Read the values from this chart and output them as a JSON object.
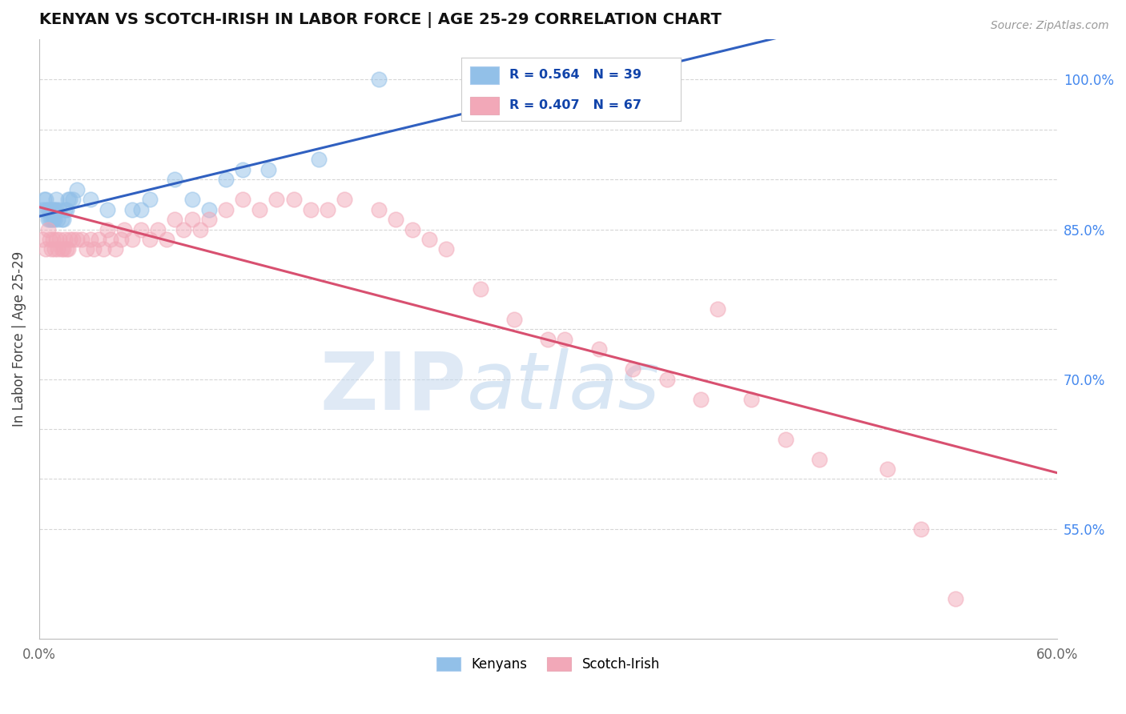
{
  "title": "KENYAN VS SCOTCH-IRISH IN LABOR FORCE | AGE 25-29 CORRELATION CHART",
  "source_text": "Source: ZipAtlas.com",
  "ylabel": "In Labor Force | Age 25-29",
  "xlim": [
    0.0,
    0.6
  ],
  "ylim": [
    0.44,
    1.04
  ],
  "xticks": [
    0.0,
    0.1,
    0.2,
    0.3,
    0.4,
    0.5,
    0.6
  ],
  "xticklabels_show": [
    "0.0%",
    "60.0%"
  ],
  "ytick_vals": [
    0.55,
    0.6,
    0.65,
    0.7,
    0.75,
    0.8,
    0.85,
    0.9,
    0.95,
    1.0
  ],
  "ytick_labels_right": [
    "55.0%",
    "",
    "",
    "70.0%",
    "",
    "",
    "85.0%",
    "",
    "",
    "100.0%"
  ],
  "kenyan_color": "#92C0E8",
  "scotch_color": "#F2A8B8",
  "kenyan_line_color": "#3060C0",
  "scotch_line_color": "#D85070",
  "kenyan_R": 0.564,
  "kenyan_N": 39,
  "scotch_R": 0.407,
  "scotch_N": 67,
  "kenyan_x": [
    0.002,
    0.003,
    0.004,
    0.004,
    0.005,
    0.005,
    0.006,
    0.006,
    0.007,
    0.007,
    0.008,
    0.008,
    0.009,
    0.009,
    0.01,
    0.01,
    0.011,
    0.012,
    0.013,
    0.014,
    0.015,
    0.016,
    0.017,
    0.018,
    0.02,
    0.022,
    0.03,
    0.04,
    0.055,
    0.06,
    0.065,
    0.08,
    0.09,
    0.1,
    0.11,
    0.12,
    0.135,
    0.165,
    0.2
  ],
  "kenyan_y": [
    0.87,
    0.88,
    0.87,
    0.88,
    0.86,
    0.87,
    0.86,
    0.87,
    0.86,
    0.87,
    0.87,
    0.86,
    0.86,
    0.87,
    0.88,
    0.87,
    0.86,
    0.87,
    0.86,
    0.86,
    0.87,
    0.87,
    0.88,
    0.88,
    0.88,
    0.89,
    0.88,
    0.87,
    0.87,
    0.87,
    0.88,
    0.9,
    0.88,
    0.87,
    0.9,
    0.91,
    0.91,
    0.92,
    1.0
  ],
  "scotch_x": [
    0.002,
    0.004,
    0.005,
    0.006,
    0.007,
    0.008,
    0.009,
    0.01,
    0.011,
    0.012,
    0.013,
    0.014,
    0.015,
    0.016,
    0.017,
    0.018,
    0.02,
    0.022,
    0.025,
    0.028,
    0.03,
    0.032,
    0.035,
    0.038,
    0.04,
    0.042,
    0.045,
    0.048,
    0.05,
    0.055,
    0.06,
    0.065,
    0.07,
    0.075,
    0.08,
    0.085,
    0.09,
    0.095,
    0.1,
    0.11,
    0.12,
    0.13,
    0.14,
    0.15,
    0.16,
    0.17,
    0.18,
    0.2,
    0.21,
    0.22,
    0.23,
    0.24,
    0.26,
    0.28,
    0.3,
    0.31,
    0.33,
    0.35,
    0.37,
    0.39,
    0.4,
    0.42,
    0.44,
    0.46,
    0.5,
    0.52,
    0.54
  ],
  "scotch_y": [
    0.84,
    0.83,
    0.85,
    0.84,
    0.83,
    0.84,
    0.83,
    0.84,
    0.83,
    0.84,
    0.83,
    0.83,
    0.84,
    0.83,
    0.83,
    0.84,
    0.84,
    0.84,
    0.84,
    0.83,
    0.84,
    0.83,
    0.84,
    0.83,
    0.85,
    0.84,
    0.83,
    0.84,
    0.85,
    0.84,
    0.85,
    0.84,
    0.85,
    0.84,
    0.86,
    0.85,
    0.86,
    0.85,
    0.86,
    0.87,
    0.88,
    0.87,
    0.88,
    0.88,
    0.87,
    0.87,
    0.88,
    0.87,
    0.86,
    0.85,
    0.84,
    0.83,
    0.79,
    0.76,
    0.74,
    0.74,
    0.73,
    0.71,
    0.7,
    0.68,
    0.77,
    0.68,
    0.64,
    0.62,
    0.61,
    0.55,
    0.48
  ],
  "legend_label_kenyan": "Kenyans",
  "legend_label_scotch": "Scotch-Irish",
  "background_color": "#FFFFFF",
  "grid_color": "#CCCCCC",
  "title_color": "#111111",
  "axis_label_color": "#444444",
  "tick_color_right": "#4488EE",
  "watermark_zip": "ZIP",
  "watermark_atlas": "atlas",
  "watermark_color_zip": "#C5D8EE",
  "watermark_color_atlas": "#AAC8E8"
}
